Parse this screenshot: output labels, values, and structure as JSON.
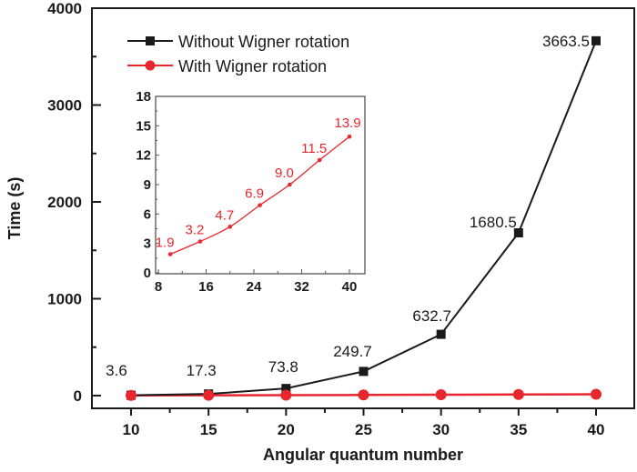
{
  "chart_data": [
    {
      "type": "line",
      "title": "",
      "xlabel": "Angular quantum number",
      "ylabel": "Time (s)",
      "x": [
        10,
        15,
        20,
        25,
        30,
        35,
        40
      ],
      "xlim": [
        7.5,
        42.5
      ],
      "ylim": [
        -100,
        4000
      ],
      "xticks": [
        "10",
        "15",
        "20",
        "25",
        "30",
        "35",
        "40"
      ],
      "yticks": [
        "0",
        "1000",
        "2000",
        "3000",
        "4000"
      ],
      "grid": false,
      "legend_position": "upper left",
      "series": [
        {
          "name": "Without Wigner rotation",
          "color": "#1a1a1a",
          "marker": "square",
          "values": [
            3.6,
            17.3,
            73.8,
            249.7,
            632.7,
            1680.5,
            3663.5
          ],
          "labels": [
            "3.6",
            "17.3",
            "73.8",
            "249.7",
            "632.7",
            "1680.5",
            "3663.5"
          ]
        },
        {
          "name": "With Wigner rotation",
          "color": "#e8262d",
          "marker": "circle",
          "values": [
            1.9,
            3.2,
            4.7,
            6.9,
            9.0,
            11.5,
            13.9
          ]
        }
      ]
    },
    {
      "type": "line",
      "title": "inset",
      "xlabel": "",
      "ylabel": "",
      "x": [
        10,
        15,
        20,
        25,
        30,
        35,
        40
      ],
      "xlim": [
        7.5,
        42
      ],
      "ylim": [
        0,
        18
      ],
      "xticks": [
        "8",
        "16",
        "24",
        "32",
        "40"
      ],
      "yticks": [
        "0",
        "3",
        "6",
        "9",
        "12",
        "15",
        "18"
      ],
      "series": [
        {
          "name": "With Wigner rotation",
          "color": "#e8262d",
          "marker": "dot",
          "values": [
            1.9,
            3.2,
            4.7,
            6.9,
            9.0,
            11.5,
            13.9
          ],
          "labels": [
            "1.9",
            "3.2",
            "4.7",
            "6.9",
            "9.0",
            "11.5",
            "13.9"
          ]
        }
      ]
    }
  ],
  "legend": {
    "items": [
      {
        "label": "Without Wigner rotation"
      },
      {
        "label": "With Wigner rotation"
      }
    ]
  },
  "axes": {
    "xlabel": "Angular quantum number",
    "ylabel": "Time (s)"
  }
}
